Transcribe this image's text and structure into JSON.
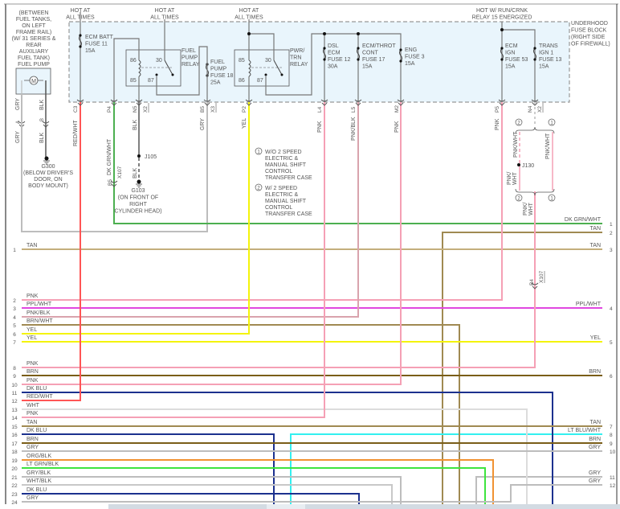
{
  "hot_labels": [
    {
      "lines": [
        "HOT AT",
        "ALL TIMES"
      ]
    },
    {
      "lines": [
        "HOT AT",
        "ALL TIMES"
      ]
    },
    {
      "lines": [
        "HOT AT",
        "ALL TIMES"
      ]
    },
    {
      "lines": [
        "HOT W/ RUN/CRNK",
        "RELAY 15 ENERGIZED"
      ]
    }
  ],
  "fuse_block_label": [
    "UNDERHOOD",
    "FUSE BLOCK",
    "(RIGHT SIDE",
    "OF FIREWALL)"
  ],
  "fuel_pump_label": [
    "(BETWEEN",
    "FUEL TANKS,",
    "ON LEFT",
    "FRAME RAIL)",
    "(W/ 31 SERIES &",
    "REAR",
    "AUXILIARY",
    "FUEL TANK)",
    "FUEL PUMP"
  ],
  "motor_symbol": "M",
  "fuses": [
    {
      "lines": [
        "ECM BATT",
        "FUSE 11",
        "15A"
      ]
    },
    {
      "lines": [
        "FUEL",
        "PUMP",
        "FUSE 18",
        "25A"
      ]
    },
    {
      "lines": [
        "DSL",
        "ECM",
        "FUSE 12",
        "30A"
      ]
    },
    {
      "lines": [
        "ECM/THROT",
        "CONT",
        "FUSE 17",
        "15A"
      ]
    },
    {
      "lines": [
        "ENG",
        "FUSE 3",
        "15A"
      ]
    },
    {
      "lines": [
        "ECM",
        "IGN",
        "FUSE 53",
        "15A"
      ]
    },
    {
      "lines": [
        "TRANS",
        "IGN 1",
        "FUSE 13",
        "15A"
      ]
    }
  ],
  "relays": [
    {
      "lines": [
        "FUEL",
        "PUMP",
        "RELAY"
      ],
      "pins": [
        "86",
        "30",
        "85",
        "87"
      ]
    },
    {
      "lines": [
        "PWR/",
        "TRN",
        "RELAY"
      ],
      "pins": [
        "85",
        "30",
        "86",
        "87"
      ]
    }
  ],
  "pins": [
    "C3",
    "P4",
    "N5",
    "X2",
    "B5",
    "X3",
    "P2",
    "L4",
    "L5",
    "M2",
    "P5",
    "N4",
    "X2"
  ],
  "vertical_wire_labels": [
    "RED/WHT",
    "DK GRN/WHT",
    "BLK",
    "GRY",
    "YEL",
    "PNK",
    "PNK/BLK",
    "PNK",
    "PNK"
  ],
  "fuel_pump_wires": {
    "gry": "GRY",
    "blk": "BLK",
    "pin_a": "A",
    "pin_b": "B"
  },
  "grounds": [
    {
      "lines": [
        "G300",
        "(BELOW DRIVER'S",
        "DOOR, ON",
        "BODY MOUNT)"
      ]
    },
    {
      "lines": [
        "G103",
        "(ON FRONT OF",
        "RIGHT",
        "CYLINDER HEAD)"
      ]
    }
  ],
  "splices": {
    "j105": "J105",
    "j130": "J130"
  },
  "x107": {
    "connector": "X107",
    "pin_b5": "B5",
    "pin_b4": "B4",
    "blk": "BLK"
  },
  "notes": [
    {
      "marker": "1",
      "lines": [
        "W/O 2 SPEED",
        "ELECTRIC &",
        "MANUAL SHIFT",
        "CONTROL",
        "TRANSFER CASE"
      ]
    },
    {
      "marker": "2",
      "lines": [
        "W/ 2 SPEED",
        "ELECTRIC &",
        "MANUAL SHIFT",
        "CONTROL",
        "TRANSFER CASE"
      ]
    }
  ],
  "pnk_wht_labels": [
    "PNK/WHT",
    "PNK/WHT",
    "PNK/",
    "WHT",
    "PNK/",
    "WHT"
  ],
  "option_markers": [
    "2",
    "1",
    "2",
    "1"
  ],
  "left_rows": [
    {
      "num": "1",
      "label": "TAN",
      "color": "#c4ae7c"
    },
    {
      "num": "2",
      "label": "PNK",
      "color": "#f5a0b5"
    },
    {
      "num": "3",
      "label": "PPL/WHT",
      "color": "#e048e0"
    },
    {
      "num": "4",
      "label": "PNK/BLK",
      "color": "#d9a3ad"
    },
    {
      "num": "5",
      "label": "BRN/WHT",
      "color": "#a08a52"
    },
    {
      "num": "6",
      "label": "YEL",
      "color": "#f4f40a"
    },
    {
      "num": "7",
      "label": "YEL",
      "color": "#f4f40a"
    },
    {
      "num": "8",
      "label": "PNK",
      "color": "#f5a0b5"
    },
    {
      "num": "9",
      "label": "BRN",
      "color": "#7a5e18"
    },
    {
      "num": "10",
      "label": "PNK",
      "color": "#f5a0b5"
    },
    {
      "num": "11",
      "label": "DK BLU",
      "color": "#1c318e"
    },
    {
      "num": "12",
      "label": "RED/WHT",
      "color": "#ff5555"
    },
    {
      "num": "13",
      "label": "WHT",
      "color": "#dcdcdc"
    },
    {
      "num": "14",
      "label": "PNK",
      "color": "#f5a0b5"
    },
    {
      "num": "15",
      "label": "TAN",
      "color": "#a08a52"
    },
    {
      "num": "16",
      "label": "DK BLU",
      "color": "#1c318e"
    },
    {
      "num": "17",
      "label": "BRN",
      "color": "#7a5e18"
    },
    {
      "num": "18",
      "label": "GRY",
      "color": "#bdbdbd"
    },
    {
      "num": "19",
      "label": "ORG/BLK",
      "color": "#f09232"
    },
    {
      "num": "20",
      "label": "LT GRN/BLK",
      "color": "#3ee43e"
    },
    {
      "num": "21",
      "label": "GRY/BLK",
      "color": "#bdbdbd"
    },
    {
      "num": "22",
      "label": "WHT/BLK",
      "color": "#c8c8c8"
    },
    {
      "num": "23",
      "label": "DK BLU",
      "color": "#1c318e"
    },
    {
      "num": "24",
      "label": "GRY",
      "color": "#bdbdbd"
    }
  ],
  "right_rows": [
    {
      "num": "1",
      "label": "DK GRN/WHT",
      "color": "#4caf50"
    },
    {
      "num": "2",
      "label": "TAN",
      "color": "#a08a52"
    },
    {
      "num": "3",
      "label": "TAN",
      "color": "#c4ae7c"
    },
    {
      "num": "4",
      "label": "PPL/WHT",
      "color": "#e048e0"
    },
    {
      "num": "5",
      "label": "YEL",
      "color": "#f4f40a"
    },
    {
      "num": "6",
      "label": "BRN",
      "color": "#7a5e18"
    },
    {
      "num": "7",
      "label": "TAN",
      "color": "#a08a52"
    },
    {
      "num": "8",
      "label": "LT BLU/WHT",
      "color": "#33f0f0"
    },
    {
      "num": "9",
      "label": "BRN",
      "color": "#7a5e18"
    },
    {
      "num": "10",
      "label": "GRY",
      "color": "#bdbdbd"
    },
    {
      "num": "11",
      "label": "GRY",
      "color": "#bdbdbd"
    },
    {
      "num": "12",
      "label": "GRY",
      "color": "#bdbdbd"
    }
  ],
  "colors": {
    "fuse_block_fill": "#e9f5fc",
    "frame": "#888888",
    "ink": "#555555",
    "gry": "#bdbdbd",
    "pnk": "#f5a0b5",
    "pnk_wht": "#f7b8c8",
    "dk_grn_wht": "#4caf50",
    "yel": "#f4f40a",
    "red_wht": "#ff5555"
  }
}
